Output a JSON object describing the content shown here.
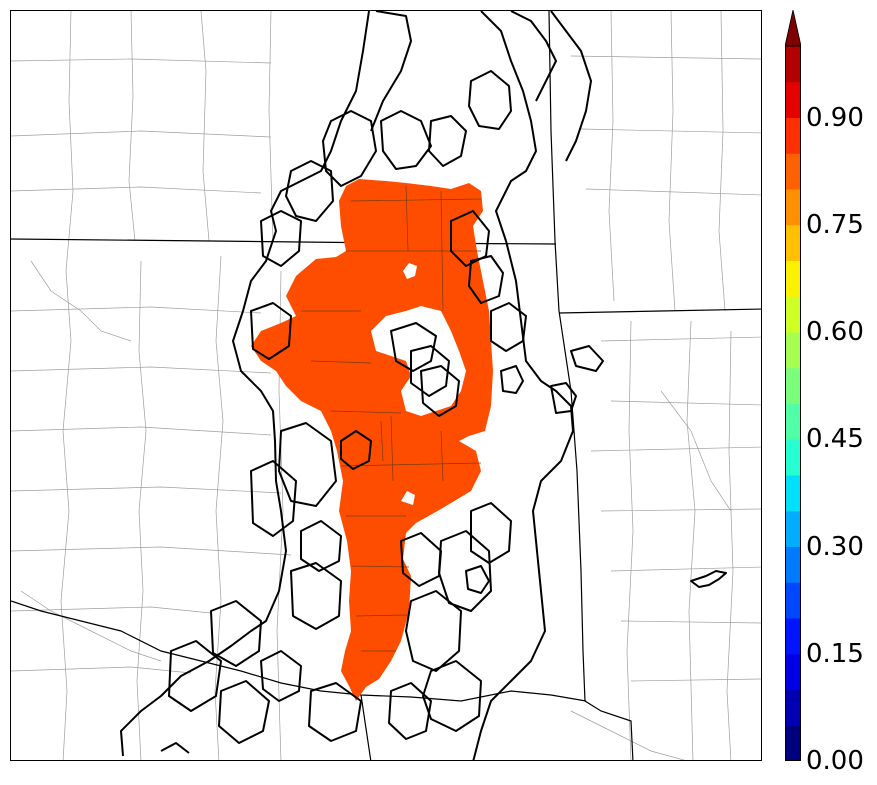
{
  "map": {
    "probability_fill_color": "#ff4d00",
    "contour_color": "#000000",
    "boundary_color": "#000000",
    "county_line_color": "#9e9e9e"
  },
  "colorbar": {
    "min": 0.0,
    "max": 1.0,
    "extend": "max",
    "tick_labels": [
      "0.00",
      "0.15",
      "0.30",
      "0.45",
      "0.60",
      "0.75",
      "0.90"
    ],
    "colors": [
      "#00007f",
      "#0000b2",
      "#0000e5",
      "#0014ff",
      "#0047ff",
      "#007aff",
      "#00adff",
      "#00e0fb",
      "#26ffd0",
      "#50ffa6",
      "#7aff7c",
      "#a6ff50",
      "#d0ff26",
      "#fbf100",
      "#ffc000",
      "#ff9100",
      "#ff6000",
      "#ff3000",
      "#e50000",
      "#b20000"
    ],
    "extend_color": "#7f0000"
  }
}
